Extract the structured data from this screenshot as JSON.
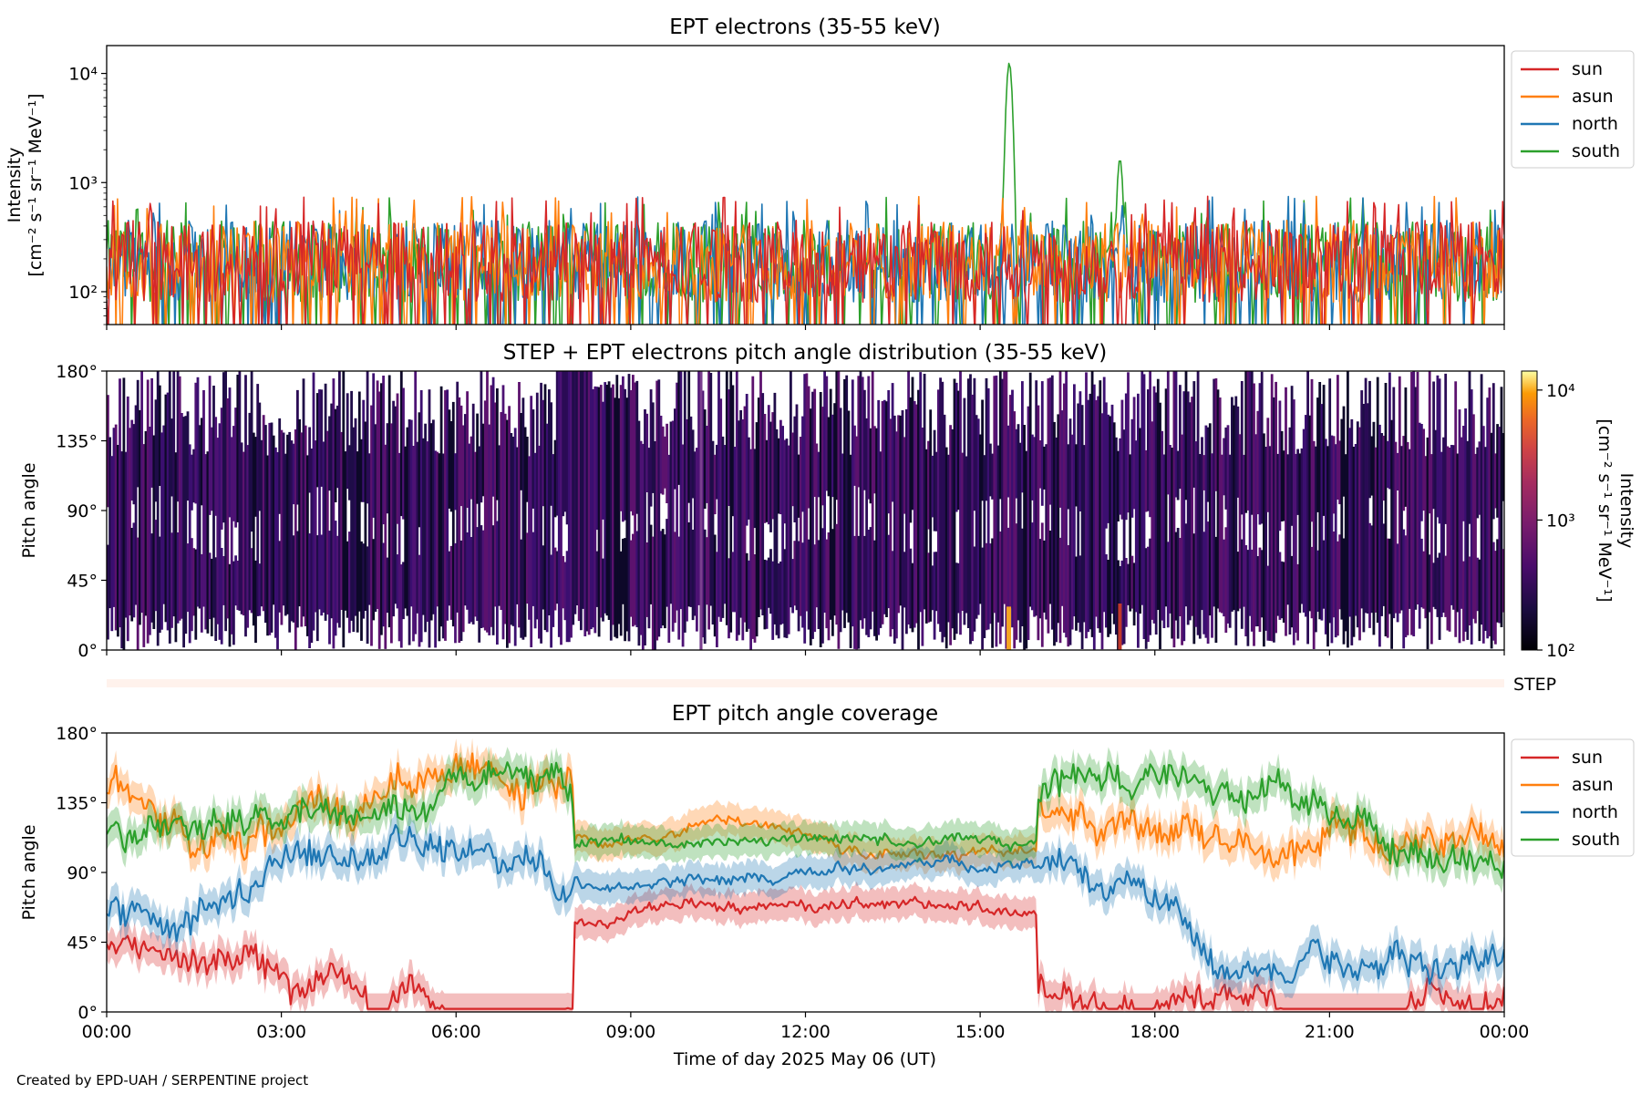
{
  "footer": {
    "credit": "Created by EPD-UAH / SERPENTINE project"
  },
  "colors": {
    "sun": "#d62728",
    "asun": "#ff7f0e",
    "north": "#1f77b4",
    "south": "#2ca02c"
  },
  "chart_data": [
    {
      "type": "line",
      "title": "EPT electrons (35-55 keV)",
      "ylabel_line1": "Intensity",
      "ylabel_line2": "[cm⁻² s⁻¹ sr⁻¹ MeV⁻¹]",
      "yscale": "log",
      "ylim": [
        50,
        18000
      ],
      "yticks": [
        {
          "value": 100,
          "label": "10²"
        },
        {
          "value": 1000,
          "label": "10³"
        },
        {
          "value": 10000,
          "label": "10⁴"
        }
      ],
      "xlim_hours": [
        0,
        24
      ],
      "legend": [
        "sun",
        "asun",
        "north",
        "south"
      ],
      "legend_position": "outside-right-top",
      "baseline_range": [
        80,
        450
      ],
      "peaks": [
        {
          "series": "south",
          "hour": 15.5,
          "value": 12500
        },
        {
          "series": "south",
          "hour": 17.4,
          "value": 1650
        }
      ]
    },
    {
      "type": "heatmap",
      "title": "STEP + EPT electrons pitch angle distribution (35-55 keV)",
      "ylabel": "Pitch angle",
      "ylim": [
        0,
        180
      ],
      "yticks": [
        "0°",
        "45°",
        "90°",
        "135°",
        "180°"
      ],
      "colorbar": {
        "label": "Intensity",
        "units": "[cm⁻² s⁻¹ sr⁻¹ MeV⁻¹]",
        "scale": "log",
        "range": [
          100,
          14000
        ],
        "ticks": [
          {
            "value": 100,
            "label": "10²"
          },
          {
            "value": 1000,
            "label": "10³"
          },
          {
            "value": 10000,
            "label": "10⁴"
          }
        ],
        "colormap": "inferno"
      }
    },
    {
      "type": "strip",
      "label": "STEP"
    },
    {
      "type": "line",
      "title": "EPT pitch angle coverage",
      "ylabel": "Pitch angle",
      "ylim": [
        0,
        180
      ],
      "yticks": [
        "0°",
        "45°",
        "90°",
        "135°",
        "180°"
      ],
      "legend": [
        "sun",
        "asun",
        "north",
        "south"
      ],
      "legend_position": "outside-right-top",
      "band_halfwidth_deg": 10,
      "xlabel": "Time of day 2025 May 06 (UT)",
      "xticks": [
        "00:00",
        "03:00",
        "06:00",
        "09:00",
        "12:00",
        "15:00",
        "18:00",
        "21:00",
        "00:00"
      ]
    }
  ]
}
